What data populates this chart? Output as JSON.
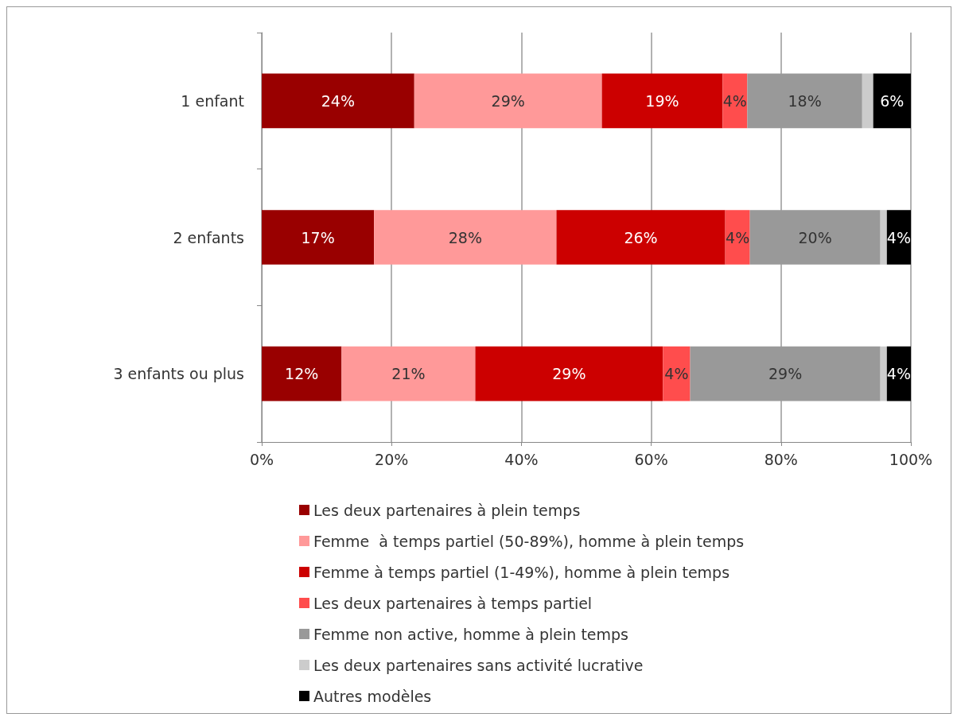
{
  "chart_data": {
    "type": "bar",
    "orientation": "horizontal",
    "stacked": true,
    "categories": [
      "1 enfant",
      "2 enfants",
      "3 enfants ou plus"
    ],
    "series": [
      {
        "name": "Les deux partenaires à plein temps",
        "color": "#990000",
        "values": [
          23.5,
          17.3,
          12.3
        ],
        "value_labels": [
          "24%",
          "17%",
          "12%"
        ]
      },
      {
        "name": "Femme  à temps partiel (50-89%), homme à plein temps",
        "color": "#ff9999",
        "values": [
          28.9,
          28.1,
          20.6
        ],
        "value_labels": [
          "29%",
          "28%",
          "21%"
        ]
      },
      {
        "name": "Femme à temps partiel (1-49%), homme à plein temps",
        "color": "#cc0000",
        "values": [
          18.6,
          26.0,
          28.9
        ],
        "value_labels": [
          "19%",
          "26%",
          "29%"
        ]
      },
      {
        "name": "Les deux partenaires à temps partiel",
        "color": "#ff4d4d",
        "values": [
          3.8,
          3.8,
          4.2
        ],
        "value_labels": [
          "4%",
          "4%",
          "4%"
        ]
      },
      {
        "name": "Femme non active, homme à plein temps",
        "color": "#999999",
        "values": [
          17.7,
          20.1,
          29.3
        ],
        "value_labels": [
          "18%",
          "20%",
          "29%"
        ]
      },
      {
        "name": "Les deux partenaires sans activité lucrative",
        "color": "#cccccc",
        "values": [
          1.7,
          1.0,
          1.0
        ],
        "value_labels": [
          null,
          null,
          null
        ]
      },
      {
        "name": "Autres modèles",
        "color": "#000000",
        "values": [
          5.8,
          3.7,
          3.7
        ],
        "value_labels": [
          "6%",
          "4%",
          "4%"
        ]
      }
    ],
    "xlim": [
      0,
      100
    ],
    "xticks": [
      {
        "value": 0,
        "label": "0%"
      },
      {
        "value": 20,
        "label": "20%"
      },
      {
        "value": 40,
        "label": "40%"
      },
      {
        "value": 60,
        "label": "60%"
      },
      {
        "value": 80,
        "label": "80%"
      },
      {
        "value": 100,
        "label": "100%"
      }
    ],
    "grid": "x",
    "legend": "bottom"
  }
}
